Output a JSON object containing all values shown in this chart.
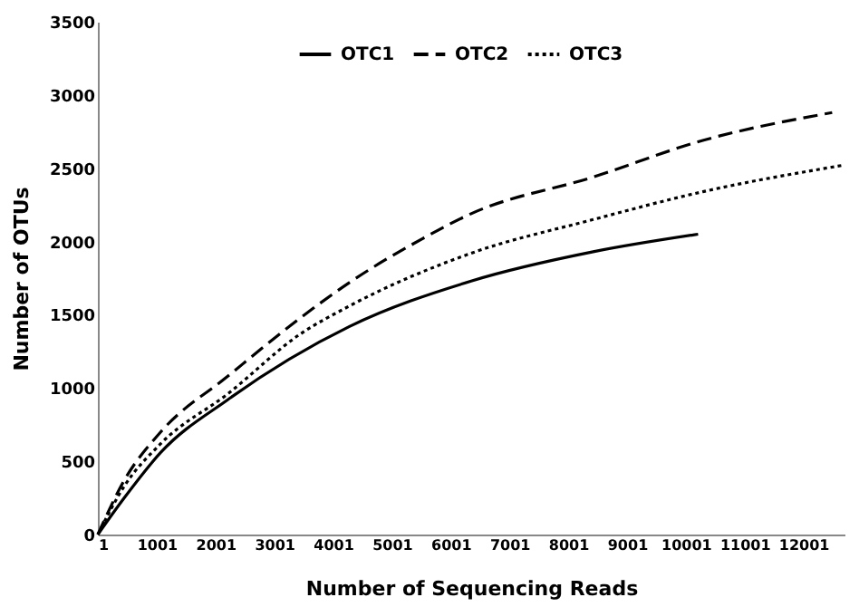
{
  "chart_data": {
    "type": "line",
    "xlabel": "Number of Sequencing Reads",
    "ylabel": "Number of OTUs",
    "xlim": [
      1,
      12700
    ],
    "xticks": [
      1,
      1001,
      2001,
      3001,
      4001,
      5001,
      6001,
      7001,
      8001,
      9001,
      10001,
      11001,
      12001
    ],
    "ylim": [
      0,
      3500
    ],
    "yticks": [
      0,
      500,
      1000,
      1500,
      2000,
      2500,
      3000,
      3500
    ],
    "grid": false,
    "legend": "top",
    "marker": "none",
    "series": [
      {
        "name": "OTC1",
        "color": "#000000",
        "line_style": "solid",
        "x": [
          1,
          450,
          1070,
          2210,
          4280,
          6350,
          8425,
          10210
        ],
        "values": [
          0,
          250,
          560,
          920,
          1420,
          1730,
          1930,
          2050
        ]
      },
      {
        "name": "OTC2",
        "color": "#000000",
        "line_style": "dashed",
        "x": [
          1,
          450,
          1070,
          2210,
          3450,
          4280,
          5525,
          6350,
          8425,
          10290,
          12490
        ],
        "values": [
          0,
          370,
          700,
          1080,
          1480,
          1720,
          2020,
          2190,
          2440,
          2690,
          2880
        ]
      },
      {
        "name": "OTC3",
        "color": "#000000",
        "line_style": "dotted",
        "x": [
          1,
          450,
          1070,
          2210,
          3450,
          4280,
          6350,
          8425,
          10290,
          12670
        ],
        "values": [
          0,
          330,
          620,
          960,
          1370,
          1560,
          1920,
          2150,
          2340,
          2520
        ]
      }
    ]
  }
}
